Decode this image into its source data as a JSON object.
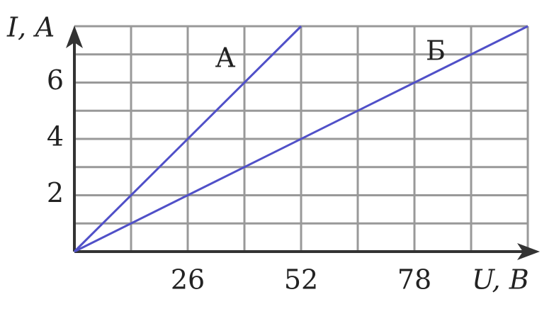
{
  "chart_data": {
    "type": "line",
    "xlabel": "U, В",
    "ylabel": "I, А",
    "xlim": [
      0,
      104
    ],
    "ylim": [
      0,
      8
    ],
    "xticks": [
      26,
      52,
      78
    ],
    "yticks": [
      2,
      4,
      6
    ],
    "xgrid": [
      13,
      26,
      39,
      52,
      65,
      78,
      91,
      104
    ],
    "ygrid": [
      1,
      2,
      3,
      4,
      5,
      6,
      7,
      8
    ],
    "grid": true,
    "series": [
      {
        "name": "А",
        "color": "#5050c8",
        "x": [
          0,
          52
        ],
        "values": [
          0,
          8
        ]
      },
      {
        "name": "Б",
        "color": "#5050c8",
        "x": [
          0,
          104
        ],
        "values": [
          0,
          8
        ]
      }
    ]
  }
}
